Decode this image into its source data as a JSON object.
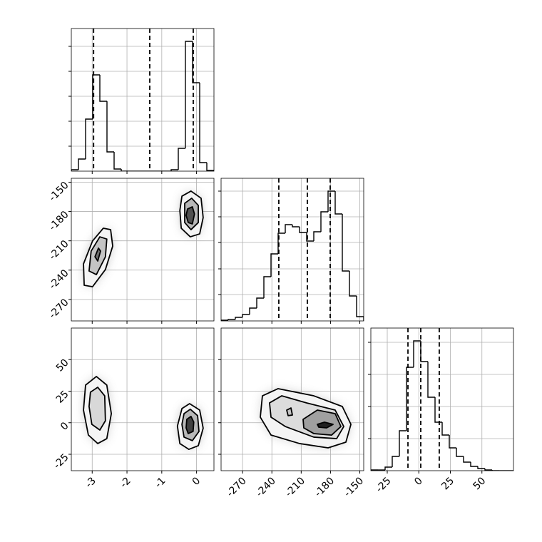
{
  "chart_data": [
    {
      "type": "histogram",
      "color": "#000000",
      "grid": true,
      "show_xticklabels": false,
      "show_yticklabels": false,
      "bins": [
        -3.6,
        -3.395,
        -3.19,
        -2.985,
        -2.78,
        -2.575,
        -2.37,
        -2.165,
        -1.96,
        -1.755,
        -1.55,
        -1.345,
        -1.14,
        -0.935,
        -0.73,
        -0.525,
        -0.32,
        -0.115,
        0.09,
        0.295,
        0.5
      ],
      "values": [
        2,
        17,
        73,
        135,
        98,
        27,
        3,
        0,
        0,
        0,
        0,
        0,
        0,
        0,
        2,
        32,
        182,
        124,
        12,
        1
      ],
      "quantiles": [
        -2.96,
        -1.345,
        -0.095
      ],
      "xlim": [
        -3.6,
        0.5
      ],
      "xticks": [
        -3,
        -2,
        -1,
        0
      ],
      "ylim": [
        0,
        200
      ],
      "yticks": [
        35,
        70,
        105,
        140,
        175
      ]
    },
    {
      "type": "contour",
      "grid": true,
      "show_xticklabels": false,
      "show_yticklabels": true,
      "xlim": [
        -3.6,
        0.5
      ],
      "xticks": [
        -3,
        -2,
        -1,
        0
      ],
      "ylim": [
        -292,
        -146
      ],
      "yticks": [
        -270,
        -240,
        -210,
        -180,
        -150
      ],
      "contours": [
        {
          "fill": "#f4f4f4",
          "x": [
            -3.23,
            -3.25,
            -2.99,
            -2.68,
            -2.47,
            -2.41,
            -2.62,
            -2.99
          ],
          "y": [
            -255.5,
            -233.6,
            -210.2,
            -197.1,
            -198.6,
            -215.4,
            -239.4,
            -257.0
          ]
        },
        {
          "fill": "#c4c4c4",
          "x": [
            -3.09,
            -3.03,
            -2.78,
            -2.58,
            -2.62,
            -2.88
          ],
          "y": [
            -240.9,
            -220.5,
            -205.9,
            -208.2,
            -226.4,
            -244.6
          ]
        },
        {
          "fill": "#707070",
          "x": [
            -2.92,
            -2.82,
            -2.76,
            -2.84
          ],
          "y": [
            -226.3,
            -217.5,
            -220.5,
            -230.7
          ]
        },
        {
          "fill": "#f4f4f4",
          "x": [
            -0.42,
            -0.16,
            0.13,
            0.19,
            0.09,
            -0.18,
            -0.44,
            -0.48
          ],
          "y": [
            -164.3,
            -159.1,
            -166.4,
            -186.2,
            -202.9,
            -205.9,
            -197.1,
            -178.9
          ]
        },
        {
          "fill": "#b8b8b8",
          "x": [
            -0.34,
            -0.14,
            0.05,
            0.05,
            -0.16,
            -0.34
          ],
          "y": [
            -171.6,
            -166.4,
            -173.7,
            -191.3,
            -198.6,
            -191.3
          ]
        },
        {
          "fill": "#505050",
          "x": [
            -0.26,
            -0.12,
            -0.06,
            -0.12,
            -0.24,
            -0.3
          ],
          "y": [
            -177.4,
            -175.2,
            -182.5,
            -192.7,
            -191.3,
            -184.0
          ]
        }
      ]
    },
    {
      "type": "histogram",
      "color": "#000000",
      "grid": true,
      "show_xticklabels": false,
      "show_yticklabels": false,
      "bins": [
        -292,
        -284.7,
        -277.4,
        -270.1,
        -262.8,
        -255.5,
        -248.2,
        -240.9,
        -233.6,
        -226.3,
        -219,
        -211.7,
        -204.4,
        -197.1,
        -189.8,
        -182.5,
        -175.2,
        -167.9,
        -160.6,
        -153.3,
        -146
      ],
      "values": [
        1,
        2,
        5,
        9,
        18,
        32,
        62,
        94,
        123,
        135,
        132,
        124,
        112,
        125,
        153,
        182,
        150,
        70,
        35,
        6
      ],
      "quantiles": [
        -232.9,
        -203.7,
        -180.3
      ],
      "xlim": [
        -292,
        -146
      ],
      "xticks": [
        -270,
        -240,
        -210,
        -180,
        -150
      ],
      "ylim": [
        0,
        200
      ],
      "yticks": [
        37,
        73,
        110,
        146,
        182
      ]
    },
    {
      "type": "contour",
      "grid": true,
      "show_xticklabels": true,
      "show_yticklabels": true,
      "xlim": [
        -3.6,
        0.5
      ],
      "xticks": [
        -3,
        -2,
        -1,
        0
      ],
      "ylim": [
        -38,
        75
      ],
      "yticks": [
        -25,
        0,
        25,
        50
      ],
      "contours": [
        {
          "fill": "#f4f4f4",
          "x": [
            -3.19,
            -2.88,
            -2.58,
            -2.45,
            -2.58,
            -2.84,
            -3.11,
            -3.25
          ],
          "y": [
            29.8,
            36.6,
            29.8,
            7.2,
            -12.6,
            -16.5,
            -9.75,
            10.0
          ]
        },
        {
          "fill": "#d8d8d8",
          "x": [
            -3.05,
            -2.84,
            -2.64,
            -2.62,
            -2.78,
            -3.01,
            -3.09
          ],
          "y": [
            24.2,
            28.1,
            21.3,
            1.55,
            -5.8,
            -1.3,
            12.9
          ]
        },
        {
          "fill": "#f4f4f4",
          "x": [
            -0.42,
            -0.2,
            0.09,
            0.19,
            0.05,
            -0.22,
            -0.48,
            -0.55
          ],
          "y": [
            11.2,
            15.1,
            10.0,
            -4.3,
            -18.2,
            -21.1,
            -16.5,
            -2.6
          ]
        },
        {
          "fill": "#b8b8b8",
          "x": [
            -0.36,
            -0.18,
            0.03,
            0.07,
            -0.12,
            -0.36,
            -0.42
          ],
          "y": [
            7.2,
            10.7,
            5.6,
            -6.9,
            -14.2,
            -11.4,
            -1.3
          ]
        },
        {
          "fill": "#404040",
          "x": [
            -0.28,
            -0.16,
            -0.08,
            -0.1,
            -0.24,
            -0.3
          ],
          "y": [
            2.7,
            5.0,
            0.5,
            -6.9,
            -8.6,
            -4.1
          ]
        }
      ]
    },
    {
      "type": "contour",
      "grid": true,
      "show_xticklabels": true,
      "show_yticklabels": false,
      "xlim": [
        -292,
        -146
      ],
      "xticks": [
        -270,
        -240,
        -210,
        -180,
        -150
      ],
      "ylim": [
        -38,
        75
      ],
      "yticks": [
        -25,
        0,
        25,
        50
      ],
      "contours": [
        {
          "fill": "#f4f4f4",
          "x": [
            -249.7,
            -233.6,
            -197.1,
            -167.9,
            -159.1,
            -164.25,
            -182.5,
            -211.7,
            -240.9,
            -251.85
          ],
          "y": [
            21.3,
            27.0,
            21.3,
            12.85,
            -1.3,
            -15.4,
            -19.9,
            -16.5,
            -9.75,
            4.4
          ]
        },
        {
          "fill": "#dcdcdc",
          "x": [
            -242.4,
            -229.95,
            -204.4,
            -175.2,
            -166.4,
            -173.7,
            -197.1,
            -226.3,
            -240.9
          ],
          "y": [
            15.7,
            21.3,
            15.7,
            10.0,
            -3.0,
            -12.6,
            -11.4,
            -3.0,
            4.4
          ]
        },
        {
          "fill": "#a0a0a0",
          "x": [
            -208.05,
            -193.45,
            -175.2,
            -169.36,
            -178.85,
            -197.1,
            -207.32
          ],
          "y": [
            2.7,
            10.0,
            7.2,
            -3.0,
            -9.8,
            -8.6,
            -4.1
          ]
        },
        {
          "fill": "#c4c4c4",
          "x": [
            -224.84,
            -220.46,
            -219.0,
            -223.38
          ],
          "y": [
            10.0,
            11.7,
            6.1,
            5.6
          ]
        },
        {
          "fill": "#202020",
          "x": [
            -193.45,
            -186.15,
            -177.39,
            -183.96,
            -191.99
          ],
          "y": [
            -1.3,
            0.4,
            -1.3,
            -4.1,
            -3.55
          ]
        }
      ]
    },
    {
      "type": "histogram",
      "color": "#000000",
      "grid": true,
      "show_xticklabels": true,
      "show_yticklabels": false,
      "bins": [
        -38,
        -32.35,
        -26.7,
        -21.05,
        -15.4,
        -9.75,
        -4.1,
        1.55,
        7.2,
        12.85,
        18.5,
        24.15,
        29.8,
        35.45,
        41.1,
        46.75,
        52.4,
        58.05,
        63.7,
        69.35,
        75
      ],
      "values": [
        1,
        1,
        5,
        20,
        56,
        145,
        182,
        153,
        103,
        68,
        50,
        32,
        20,
        12,
        6,
        3,
        1,
        0,
        0,
        0
      ],
      "quantiles": [
        -8.6,
        1.55,
        16.2
      ],
      "xlim": [
        -38,
        75
      ],
      "xticks": [
        -25,
        0,
        25,
        50
      ],
      "ylim": [
        0,
        200
      ],
      "yticks": [
        45,
        90,
        135,
        180
      ]
    }
  ]
}
